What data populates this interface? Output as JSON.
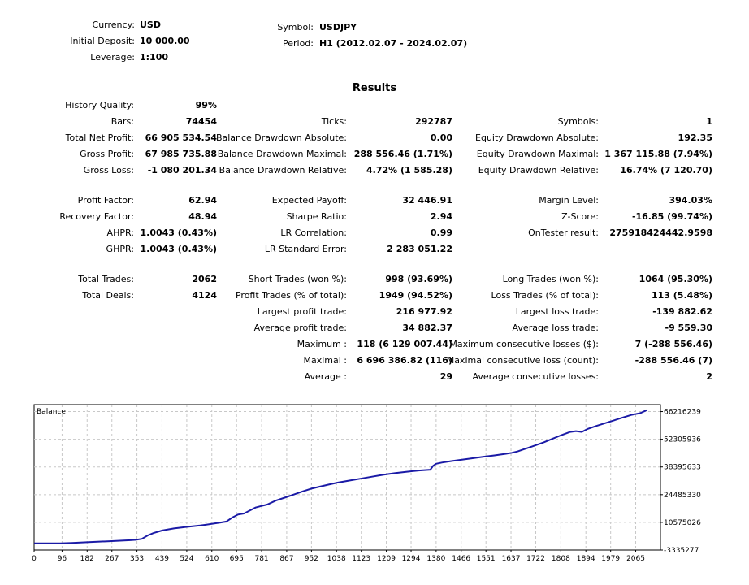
{
  "header": {
    "left": [
      {
        "label": "Currency:",
        "value": "USD"
      },
      {
        "label": "Initial Deposit:",
        "value": "10 000.00"
      },
      {
        "label": "Leverage:",
        "value": "1:100"
      }
    ],
    "right": [
      {
        "label": "Symbol:",
        "value": "USDJPY"
      },
      {
        "label": "Period:",
        "value": "H1 (2012.02.07 - 2024.02.07)"
      }
    ]
  },
  "results_title": "Results",
  "col1": [
    {
      "label": "History Quality:",
      "value": "99%"
    },
    {
      "label": "Bars:",
      "value": "74454"
    },
    {
      "label": "Total Net Profit:",
      "value": "66 905 534.54"
    },
    {
      "label": "Gross Profit:",
      "value": "67 985 735.88"
    },
    {
      "label": "Gross Loss:",
      "value": "-1 080 201.34"
    },
    {
      "label": "Profit Factor:",
      "value": "62.94"
    },
    {
      "label": "Recovery Factor:",
      "value": "48.94"
    },
    {
      "label": "AHPR:",
      "value": "1.0043 (0.43%)"
    },
    {
      "label": "GHPR:",
      "value": "1.0043 (0.43%)"
    },
    {
      "label": "Total Trades:",
      "value": "2062"
    },
    {
      "label": "Total Deals:",
      "value": "4124"
    }
  ],
  "col2": [
    {
      "label": "Ticks:",
      "value": "292787"
    },
    {
      "label": "Balance Drawdown Absolute:",
      "value": "0.00"
    },
    {
      "label": "Balance Drawdown Maximal:",
      "value": "288 556.46 (1.71%)"
    },
    {
      "label": "Balance Drawdown Relative:",
      "value": "4.72% (1 585.28)"
    },
    {
      "label": "Expected Payoff:",
      "value": "32 446.91"
    },
    {
      "label": "Sharpe Ratio:",
      "value": "2.94"
    },
    {
      "label": "LR Correlation:",
      "value": "0.99"
    },
    {
      "label": "LR Standard Error:",
      "value": "2 283 051.22"
    },
    {
      "label": "Short Trades (won %):",
      "value": "998 (93.69%)"
    },
    {
      "label": "Profit Trades (% of total):",
      "value": "1949 (94.52%)"
    },
    {
      "label": "Largest profit trade:",
      "value": "216 977.92"
    },
    {
      "label": "Average profit trade:",
      "value": "34 882.37"
    },
    {
      "label": "Maximum :",
      "value": "118 (6 129 007.44)"
    },
    {
      "label": "Maximal :",
      "value": "6 696 386.82 (116)"
    },
    {
      "label": "Average :",
      "value": "29"
    }
  ],
  "col3": [
    {
      "label": "Symbols:",
      "value": "1"
    },
    {
      "label": "Equity Drawdown Absolute:",
      "value": "192.35"
    },
    {
      "label": "Equity Drawdown Maximal:",
      "value": "1 367 115.88 (7.94%)"
    },
    {
      "label": "Equity Drawdown Relative:",
      "value": "16.74% (7 120.70)"
    },
    {
      "label": "Margin Level:",
      "value": "394.03%"
    },
    {
      "label": "Z-Score:",
      "value": "-16.85 (99.74%)"
    },
    {
      "label": "OnTester result:",
      "value": "275918424442.9598"
    },
    {
      "label": "Long Trades (won %):",
      "value": "1064 (95.30%)"
    },
    {
      "label": "Loss Trades (% of total):",
      "value": "113 (5.48%)"
    },
    {
      "label": "Largest loss trade:",
      "value": "-139 882.62"
    },
    {
      "label": "Average loss trade:",
      "value": "-9 559.30"
    },
    {
      "label": "Maximum consecutive losses ($):",
      "value": "7 (-288 556.46)"
    },
    {
      "label": "Maximal consecutive loss (count):",
      "value": "-288 556.46 (7)"
    },
    {
      "label": "Average consecutive losses:",
      "value": "2"
    }
  ],
  "chart_data": {
    "type": "line",
    "title": "Balance",
    "x_ticks": [
      "0",
      "96",
      "182",
      "267",
      "353",
      "439",
      "524",
      "610",
      "695",
      "781",
      "867",
      "952",
      "1038",
      "1123",
      "1209",
      "1294",
      "1380",
      "1466",
      "1551",
      "1637",
      "1722",
      "1808",
      "1894",
      "1979",
      "2065"
    ],
    "y_ticks": [
      "66216239",
      "52305936",
      "38395633",
      "24485330",
      "10575026",
      "-3335277"
    ],
    "xlim": [
      0,
      2150
    ],
    "ylim": [
      -3335277,
      69700000
    ],
    "grid": true,
    "line_color": "#1a1aa6",
    "series": [
      {
        "x": [
          0,
          90,
          130,
          180,
          260,
          330,
          350,
          370,
          390,
          410,
          440,
          480,
          524,
          570,
          610,
          640,
          660,
          680,
          700,
          720,
          740,
          760,
          781,
          800,
          830,
          860,
          890,
          920,
          952,
          980,
          1010,
          1040,
          1080,
          1120,
          1160,
          1200,
          1240,
          1280,
          1320,
          1360,
          1370,
          1380,
          1400,
          1430,
          1466,
          1500,
          1540,
          1580,
          1620,
          1640,
          1660,
          1680,
          1700,
          1720,
          1750,
          1780,
          1810,
          1840,
          1860,
          1880,
          1900,
          1930,
          1960,
          1990,
          2020,
          2050,
          2080,
          2103
        ],
        "y": [
          0,
          0,
          200000,
          600000,
          1100000,
          1600000,
          1800000,
          2300000,
          4000000,
          5200000,
          6500000,
          7500000,
          8300000,
          9000000,
          9800000,
          10500000,
          11000000,
          13000000,
          14500000,
          15000000,
          16500000,
          18000000,
          18800000,
          19500000,
          21500000,
          23000000,
          24500000,
          26000000,
          27500000,
          28500000,
          29500000,
          30500000,
          31500000,
          32500000,
          33500000,
          34500000,
          35300000,
          36000000,
          36600000,
          37000000,
          39000000,
          40000000,
          40600000,
          41300000,
          42000000,
          42700000,
          43500000,
          44200000,
          45000000,
          45500000,
          46200000,
          47200000,
          48200000,
          49200000,
          50800000,
          52600000,
          54400000,
          56000000,
          56400000,
          56000000,
          57500000,
          59000000,
          60400000,
          61800000,
          63200000,
          64500000,
          65400000,
          66905534
        ]
      }
    ]
  }
}
